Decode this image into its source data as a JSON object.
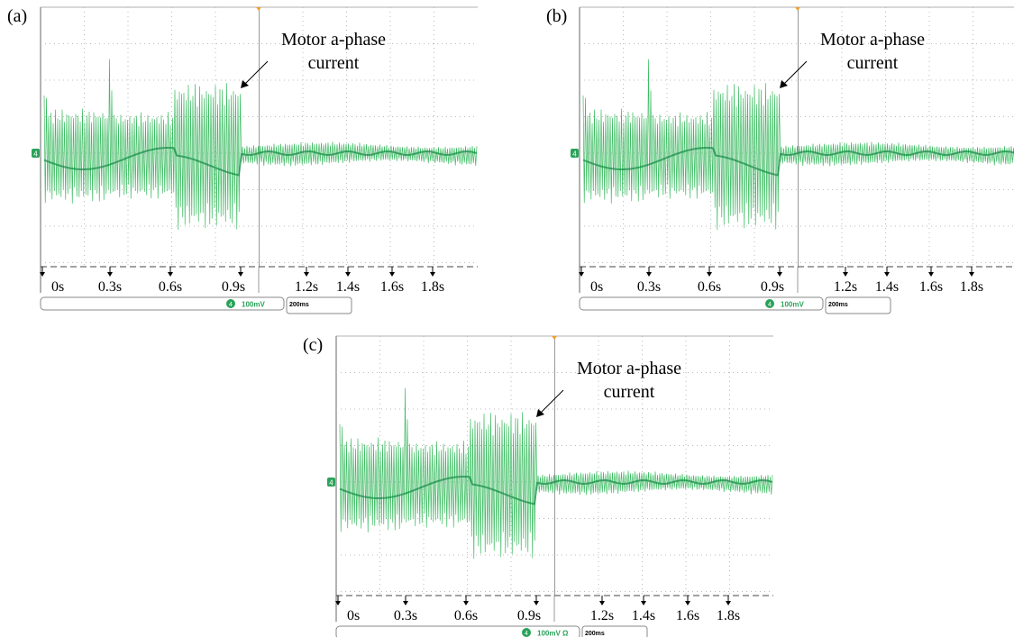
{
  "panels": [
    {
      "label": "(a)",
      "annotation": [
        "Motor a-phase",
        "current"
      ],
      "channel": "4",
      "time_markers": [
        "0s",
        "0.3s",
        "0.6s",
        "0.9s",
        "1.2s",
        "1.4s",
        "1.6s",
        "1.8s"
      ],
      "scale": "100mV",
      "timebase": "200ms"
    },
    {
      "label": "(b)",
      "annotation": [
        "Motor a-phase",
        "current"
      ],
      "channel": "4",
      "time_markers": [
        "0s",
        "0.3s",
        "0.6s",
        "0.9s",
        "1.2s",
        "1.4s",
        "1.6s",
        "1.8s"
      ],
      "scale": "100mV",
      "timebase": "200ms"
    },
    {
      "label": "(c)",
      "annotation": [
        "Motor a-phase",
        "current"
      ],
      "channel": "4",
      "time_markers": [
        "0s",
        "0.3s",
        "0.6s",
        "0.9s",
        "1.2s",
        "1.4s",
        "1.6s",
        "1.8s"
      ],
      "scale": "100mV Ω",
      "timebase": "200ms"
    }
  ]
}
